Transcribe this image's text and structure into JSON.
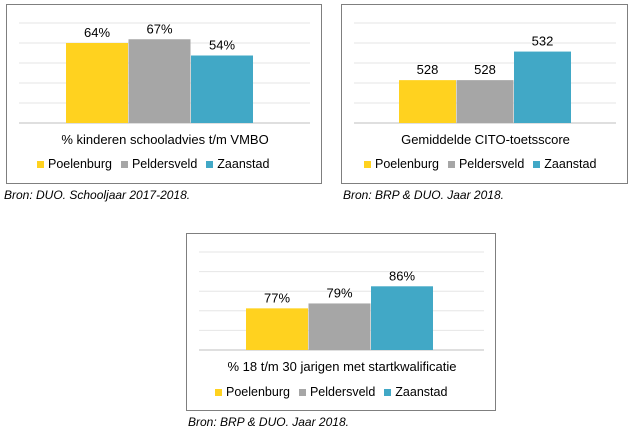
{
  "chart_data": [
    {
      "type": "bar",
      "categories": [
        "Poelenburg",
        "Peldersveld",
        "Zaanstad"
      ],
      "values": [
        64,
        67,
        54
      ],
      "data_labels": [
        "64%",
        "67%",
        "54%"
      ],
      "xlabel": "% kinderen schooladvies t/m VMBO",
      "ylim": [
        0,
        80
      ],
      "grid": true,
      "legend_position": "bottom",
      "source": "Bron: DUO. Schooljaar 2017-2018."
    },
    {
      "type": "bar",
      "categories": [
        "Poelenburg",
        "Peldersveld",
        "Zaanstad"
      ],
      "values": [
        528,
        528,
        532
      ],
      "data_labels": [
        "528",
        "528",
        "532"
      ],
      "xlabel": "Gemiddelde CITO-toetsscore",
      "ylim": [
        522,
        536
      ],
      "grid": true,
      "legend_position": "bottom",
      "source": "Bron: BRP & DUO. Jaar 2018."
    },
    {
      "type": "bar",
      "categories": [
        "Poelenburg",
        "Peldersveld",
        "Zaanstad"
      ],
      "values": [
        77,
        79,
        86
      ],
      "data_labels": [
        "77%",
        "79%",
        "86%"
      ],
      "xlabel": "% 18 t/m 30 jarigen met startkwalificatie",
      "ylim": [
        60,
        100
      ],
      "grid": true,
      "legend_position": "bottom",
      "source": "Bron: BRP & DUO. Jaar 2018."
    }
  ],
  "colors": [
    "#ffd21f",
    "#a6a6a6",
    "#41a8c6"
  ]
}
